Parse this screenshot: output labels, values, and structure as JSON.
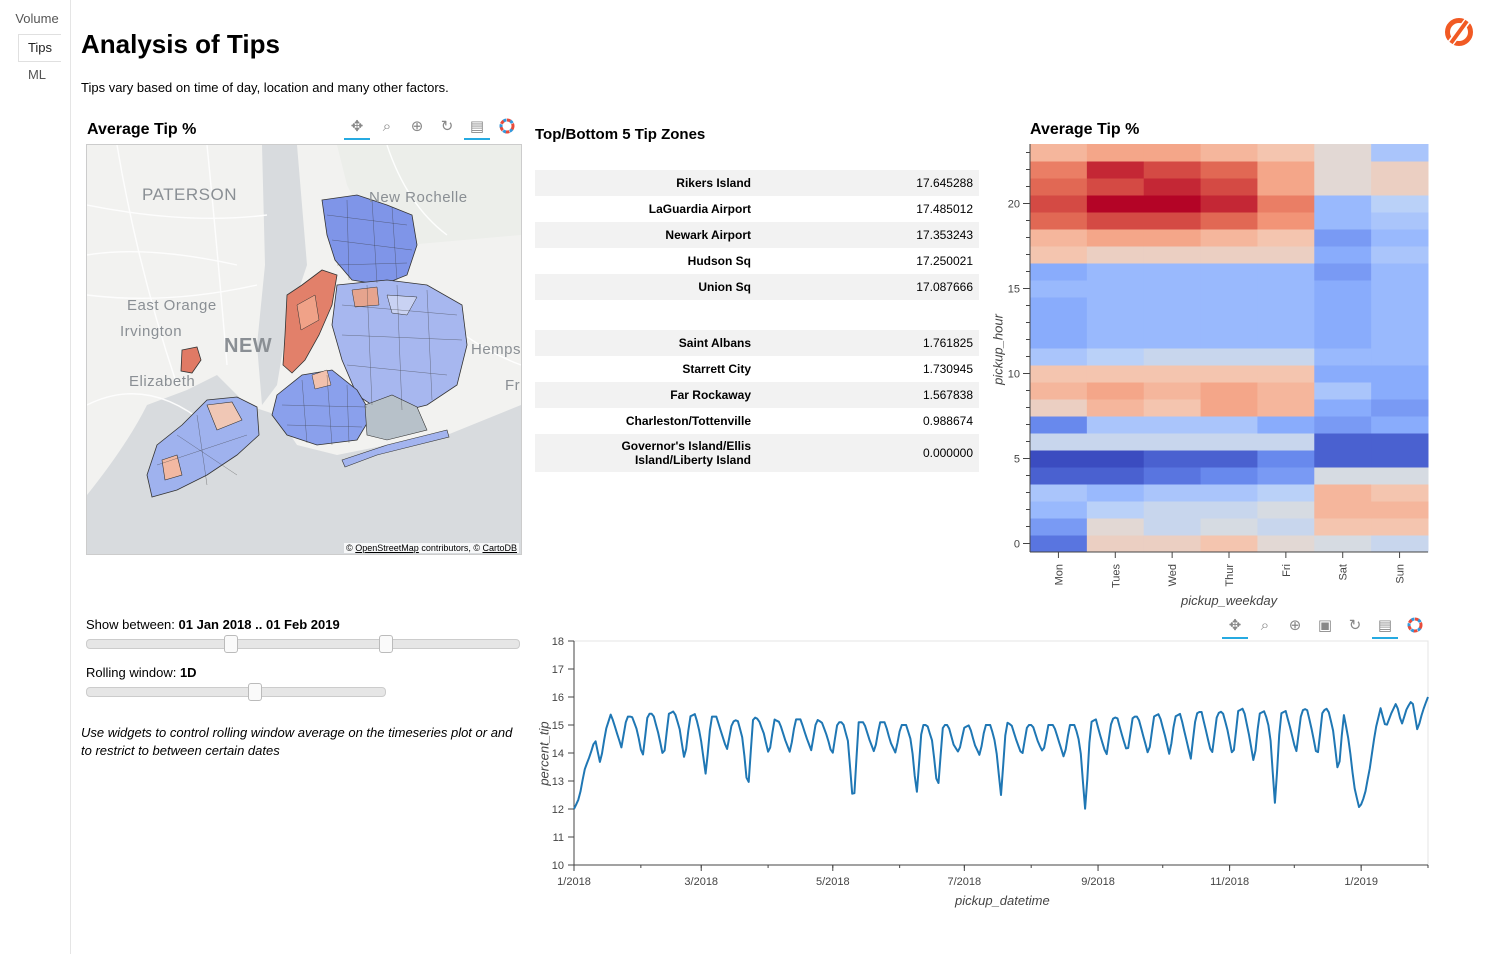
{
  "tabs": [
    {
      "label": "Volume"
    },
    {
      "label": "Tips"
    },
    {
      "label": "ML"
    }
  ],
  "header": {
    "title": "Analysis of Tips",
    "subtitle": "Tips vary based on time of day, location and many other factors."
  },
  "map_panel": {
    "title": "Average Tip %",
    "labels": [
      "PATERSON",
      "New Rochelle",
      "East Orange",
      "Irvington",
      "NEW",
      "Elizabeth",
      "Hemps",
      "Fr"
    ],
    "attribution_prefix": "© ",
    "attribution_link1": "OpenStreetMap",
    "attribution_mid": " contributors, © ",
    "attribution_link2": "CartoDB"
  },
  "table_panel": {
    "title": "Top/Bottom 5 Tip Zones",
    "top": [
      {
        "zone": "Rikers Island",
        "value": "17.645288"
      },
      {
        "zone": "LaGuardia Airport",
        "value": "17.485012"
      },
      {
        "zone": "Newark Airport",
        "value": "17.353243"
      },
      {
        "zone": "Hudson Sq",
        "value": "17.250021"
      },
      {
        "zone": "Union Sq",
        "value": "17.087666"
      }
    ],
    "bottom": [
      {
        "zone": "Saint Albans",
        "value": "1.761825"
      },
      {
        "zone": "Starrett City",
        "value": "1.730945"
      },
      {
        "zone": "Far Rockaway",
        "value": "1.567838"
      },
      {
        "zone": "Charleston/Tottenville",
        "value": "0.988674"
      },
      {
        "zone": "Governor's Island/Ellis Island/Liberty Island",
        "value": "0.000000"
      }
    ]
  },
  "widgets": {
    "range_label": "Show between: ",
    "range_value": "01 Jan 2018 .. 01 Feb 2019",
    "range_fraction": [
      0.33,
      0.69
    ],
    "window_label": "Rolling window: ",
    "window_value": "1D",
    "window_fraction": 0.56,
    "note": "Use widgets to control rolling window average on the timeseries plot or and to restrict to between certain dates"
  },
  "chart_data": [
    {
      "type": "heatmap",
      "title": "Average Tip %",
      "xlabel": "pickup_weekday",
      "ylabel": "pickup_hour",
      "x": [
        "Mon",
        "Tues",
        "Wed",
        "Thur",
        "Fri",
        "Sat",
        "Sun"
      ],
      "y": [
        0,
        1,
        2,
        3,
        4,
        5,
        6,
        7,
        8,
        9,
        10,
        11,
        12,
        13,
        14,
        15,
        16,
        17,
        18,
        19,
        20,
        21,
        22,
        23
      ],
      "yticks": [
        0,
        5,
        10,
        15,
        20
      ],
      "colormap": "coolwarm",
      "z": [
        [
          3,
          13,
          13,
          14,
          12,
          11,
          10
        ],
        [
          5,
          12,
          10,
          11,
          10,
          14,
          14
        ],
        [
          7,
          9,
          10,
          10,
          11,
          15,
          15
        ],
        [
          8,
          7,
          8,
          8,
          9,
          15,
          14
        ],
        [
          2,
          2,
          3,
          4,
          5,
          11,
          11
        ],
        [
          1,
          1,
          2,
          2,
          4,
          2,
          2
        ],
        [
          10,
          10,
          10,
          10,
          10,
          2,
          2
        ],
        [
          4,
          8,
          8,
          8,
          6,
          5,
          6
        ],
        [
          13,
          15,
          14,
          16,
          15,
          6,
          5
        ],
        [
          15,
          16,
          15,
          16,
          15,
          8,
          6
        ],
        [
          14,
          14,
          14,
          14,
          14,
          6,
          6
        ],
        [
          8,
          9,
          10,
          10,
          10,
          7,
          7
        ],
        [
          6,
          7,
          7,
          7,
          7,
          6,
          7
        ],
        [
          6,
          7,
          7,
          7,
          7,
          6,
          7
        ],
        [
          6,
          7,
          7,
          7,
          7,
          6,
          7
        ],
        [
          7,
          7,
          7,
          7,
          7,
          6,
          7
        ],
        [
          6,
          7,
          7,
          7,
          7,
          5,
          7
        ],
        [
          14,
          13,
          13,
          13,
          13,
          6,
          8
        ],
        [
          15,
          16,
          16,
          15,
          14,
          5,
          7
        ],
        [
          19,
          20,
          20,
          19,
          17,
          7,
          8
        ],
        [
          20,
          22,
          22,
          21,
          18,
          7,
          9
        ],
        [
          19,
          20,
          21,
          20,
          16,
          12,
          13
        ],
        [
          18,
          21,
          20,
          19,
          16,
          12,
          13
        ],
        [
          15,
          16,
          16,
          15,
          14,
          12,
          8
        ]
      ]
    },
    {
      "type": "line",
      "xlabel": "pickup_datetime",
      "ylabel": "percent_tip",
      "ylim": [
        10,
        18
      ],
      "yticks": [
        10,
        11,
        12,
        13,
        14,
        15,
        16,
        17,
        18
      ],
      "xticks": [
        "1/2018",
        "3/2018",
        "5/2018",
        "7/2018",
        "9/2018",
        "11/2018",
        "1/2019"
      ],
      "x_start": "2018-01-01",
      "x_end": "2019-02-01",
      "series": [
        {
          "values": [
            12.0,
            12.4,
            13.4,
            13.9,
            14.5,
            13.6,
            14.8,
            15.4,
            14.8,
            14.2,
            15.3,
            15.3,
            14.8,
            13.8,
            15.4,
            15.4,
            14.7,
            13.8,
            15.4,
            15.5,
            14.9,
            13.7,
            15.3,
            15.4,
            14.6,
            13.2,
            15.3,
            15.3,
            14.7,
            14.1,
            15.1,
            15.2,
            14.5,
            12.6,
            15.3,
            15.2,
            14.7,
            13.9,
            15.2,
            15.1,
            14.5,
            14.0,
            15.2,
            15.2,
            14.6,
            14.1,
            15.2,
            15.1,
            14.6,
            13.9,
            15.1,
            15.1,
            14.4,
            12.0,
            15.1,
            15.1,
            14.5,
            14.0,
            15.1,
            15.1,
            14.4,
            14.0,
            15.0,
            15.0,
            14.4,
            12.5,
            15.0,
            15.0,
            14.4,
            12.6,
            15.0,
            15.0,
            14.3,
            14.0,
            14.9,
            15.0,
            14.3,
            13.9,
            15.0,
            15.0,
            14.3,
            12.5,
            15.1,
            15.0,
            14.4,
            13.9,
            15.0,
            15.0,
            14.4,
            14.0,
            15.0,
            15.0,
            14.4,
            13.8,
            15.0,
            15.0,
            14.3,
            11.9,
            15.1,
            15.2,
            14.5,
            13.9,
            15.2,
            15.3,
            14.6,
            14.0,
            15.3,
            15.3,
            14.6,
            13.9,
            15.3,
            15.4,
            14.7,
            13.9,
            15.3,
            15.4,
            14.6,
            13.8,
            15.4,
            15.5,
            14.7,
            13.9,
            15.4,
            15.5,
            14.8,
            13.8,
            15.5,
            15.6,
            14.7,
            13.6,
            15.4,
            15.5,
            14.8,
            12.1,
            15.4,
            15.5,
            14.8,
            14.0,
            15.5,
            15.6,
            14.8,
            13.8,
            15.5,
            15.6,
            14.8,
            13.2,
            15.4,
            14.4,
            12.8,
            12.0,
            12.5,
            13.5,
            14.8,
            15.6,
            14.9,
            15.4,
            15.8,
            15.0,
            15.6,
            15.9,
            14.8,
            15.5,
            16.0
          ]
        }
      ]
    }
  ]
}
